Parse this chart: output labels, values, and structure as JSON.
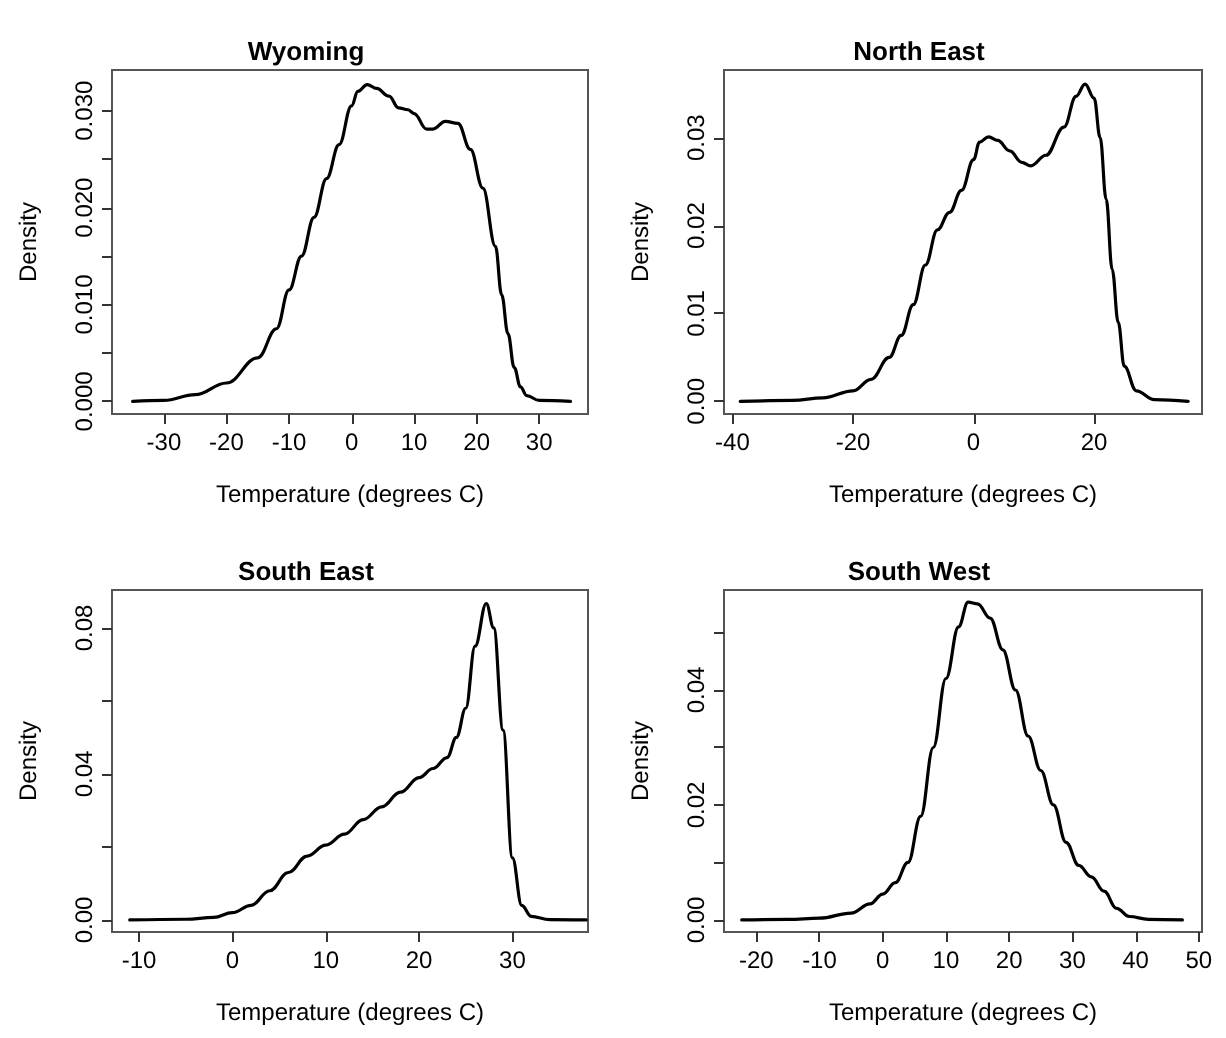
{
  "chart_data": [
    {
      "type": "line",
      "title": "Wyoming",
      "xlabel": "Temperature (degrees C)",
      "ylabel": "Density",
      "color": "#000000",
      "marker": "none",
      "x": [
        -35,
        -30,
        -25,
        -20,
        -15,
        -12,
        -10,
        -8,
        -6,
        -4,
        -2,
        0,
        1,
        2.5,
        4,
        6,
        7.5,
        9,
        10,
        12,
        13,
        15,
        17,
        19,
        21,
        23,
        24,
        25,
        26,
        27,
        28,
        30,
        35
      ],
      "values": [
        0,
        0.0001,
        0.0007,
        0.0019,
        0.0045,
        0.0075,
        0.0115,
        0.015,
        0.019,
        0.023,
        0.0265,
        0.0305,
        0.032,
        0.0327,
        0.0323,
        0.0315,
        0.0303,
        0.0301,
        0.0297,
        0.0281,
        0.0281,
        0.0289,
        0.0287,
        0.026,
        0.022,
        0.016,
        0.011,
        0.007,
        0.0035,
        0.0015,
        0.0006,
        0.0001,
        0
      ],
      "xlim": [
        -38.3,
        37.8
      ],
      "xticks": [
        -30,
        -20,
        -10,
        0,
        10,
        20,
        30
      ],
      "ylim": [
        -0.0013,
        0.0342
      ],
      "yticks": [
        "0.000",
        {
          "value": 0.005,
          "label": null
        },
        {
          "value": 0.01,
          "label": "0.010"
        },
        {
          "value": 0.015,
          "label": null
        },
        {
          "value": 0.02,
          "label": "0.020"
        },
        {
          "value": 0.025,
          "label": null
        },
        {
          "value": 0.03,
          "label": "0.030"
        }
      ]
    },
    {
      "type": "line",
      "title": "North East",
      "xlabel": "Temperature (degrees C)",
      "ylabel": "Density",
      "color": "#000000",
      "marker": "none",
      "x": [
        -38.7,
        -30,
        -25,
        -20,
        -17,
        -14,
        -12,
        -10,
        -8,
        -6,
        -4,
        -2,
        0,
        1,
        2.5,
        4,
        6,
        8,
        9.5,
        12,
        15,
        17,
        18.5,
        20,
        21,
        22,
        23,
        24,
        25,
        27,
        30,
        35.6
      ],
      "values": [
        0,
        0.0001,
        0.0004,
        0.0012,
        0.0025,
        0.005,
        0.0075,
        0.011,
        0.0155,
        0.0195,
        0.0215,
        0.024,
        0.0275,
        0.0295,
        0.0301,
        0.0297,
        0.0285,
        0.0272,
        0.0268,
        0.028,
        0.0312,
        0.0347,
        0.0361,
        0.0345,
        0.03,
        0.023,
        0.015,
        0.009,
        0.004,
        0.0012,
        0.0002,
        0
      ],
      "xlim": [
        -41.4,
        37.9
      ],
      "xticks": [
        -40,
        -20,
        0,
        20
      ],
      "ylim": [
        -0.00144,
        0.0377
      ],
      "yticks": [
        {
          "value": 0,
          "label": "0.00"
        },
        0.01,
        0.02,
        0.03
      ]
    },
    {
      "type": "line",
      "title": "South East",
      "xlabel": "Temperature (degrees C)",
      "ylabel": "Density",
      "color": "#000000",
      "marker": "none",
      "x": [
        -11,
        -5,
        -2,
        0,
        2,
        4,
        6,
        8,
        10,
        12,
        14,
        16,
        18,
        20,
        21.5,
        23,
        24,
        25,
        26,
        27.2,
        28,
        29,
        30,
        31,
        32,
        34,
        37.9
      ],
      "values": [
        0,
        0.0002,
        0.0007,
        0.002,
        0.004,
        0.008,
        0.013,
        0.0175,
        0.0205,
        0.0235,
        0.0275,
        0.031,
        0.035,
        0.039,
        0.0415,
        0.0445,
        0.05,
        0.058,
        0.075,
        0.0867,
        0.08,
        0.052,
        0.017,
        0.004,
        0.001,
        0.0001,
        0
      ],
      "xlim": [
        -12.9,
        38.1
      ],
      "xticks": [
        -10,
        0,
        10,
        20,
        30
      ],
      "ylim": [
        -0.0033,
        0.0904
      ],
      "yticks": [
        {
          "value": 0,
          "label": "0.00"
        },
        {
          "value": 0.02,
          "label": null
        },
        0.04,
        {
          "value": 0.06,
          "label": null
        },
        0.08
      ]
    },
    {
      "type": "line",
      "title": "South West",
      "xlabel": "Temperature (degrees C)",
      "ylabel": "Density",
      "color": "#000000",
      "marker": "none",
      "x": [
        -22.3,
        -15,
        -10,
        -5,
        -2,
        0,
        2,
        4,
        6,
        8,
        10,
        12,
        13.5,
        15,
        17,
        19,
        21,
        23,
        25,
        27,
        29,
        31,
        33,
        35,
        37,
        39,
        42,
        47.4
      ],
      "values": [
        0,
        0.0001,
        0.0003,
        0.0012,
        0.0028,
        0.0045,
        0.0065,
        0.01,
        0.018,
        0.03,
        0.042,
        0.051,
        0.0553,
        0.055,
        0.0525,
        0.047,
        0.04,
        0.032,
        0.026,
        0.02,
        0.0135,
        0.0095,
        0.0075,
        0.005,
        0.002,
        0.0006,
        0.0001,
        0
      ],
      "xlim": [
        -25.1,
        50.5
      ],
      "xticks": [
        -20,
        -10,
        0,
        10,
        20,
        30,
        40,
        50
      ],
      "ylim": [
        -0.0021,
        0.0574
      ],
      "yticks": [
        {
          "value": 0,
          "label": "0.00"
        },
        {
          "value": 0.01,
          "label": null
        },
        0.02,
        {
          "value": 0.03,
          "label": null
        },
        0.04,
        {
          "value": 0.05,
          "label": null
        }
      ]
    }
  ]
}
